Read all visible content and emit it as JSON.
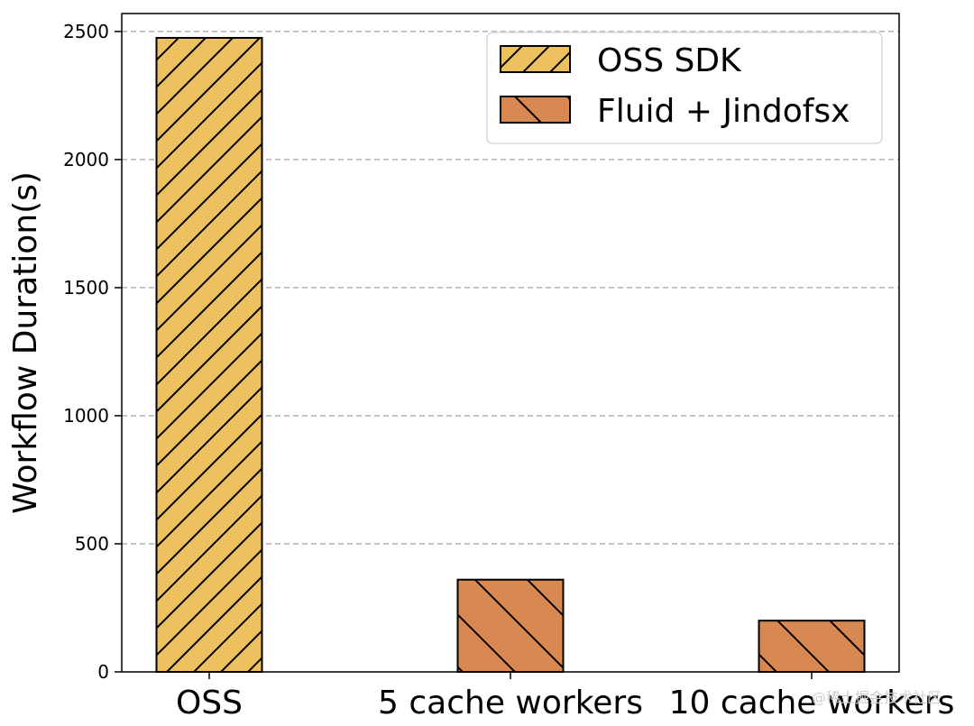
{
  "chart_data": {
    "type": "bar",
    "title": "",
    "xlabel": "",
    "ylabel": "Workflow Duration(s)",
    "ylim": [
      0,
      2570
    ],
    "yticks": [
      0,
      500,
      1000,
      1500,
      2000,
      2500
    ],
    "grid": "horizontal dashed",
    "legend_position": "top-right",
    "categories": [
      "OSS",
      "5 cache workers",
      "10 cache workers"
    ],
    "series": [
      {
        "name": "OSS SDK",
        "color": "#ECC05E",
        "hatch": "forward-diagonal",
        "values": [
          2475,
          null,
          null
        ]
      },
      {
        "name": "Fluid + Jindofsx",
        "color": "#D88952",
        "hatch": "back-diagonal",
        "values": [
          null,
          360,
          200
        ]
      }
    ]
  },
  "watermark": "@稀土掘金技术社区"
}
